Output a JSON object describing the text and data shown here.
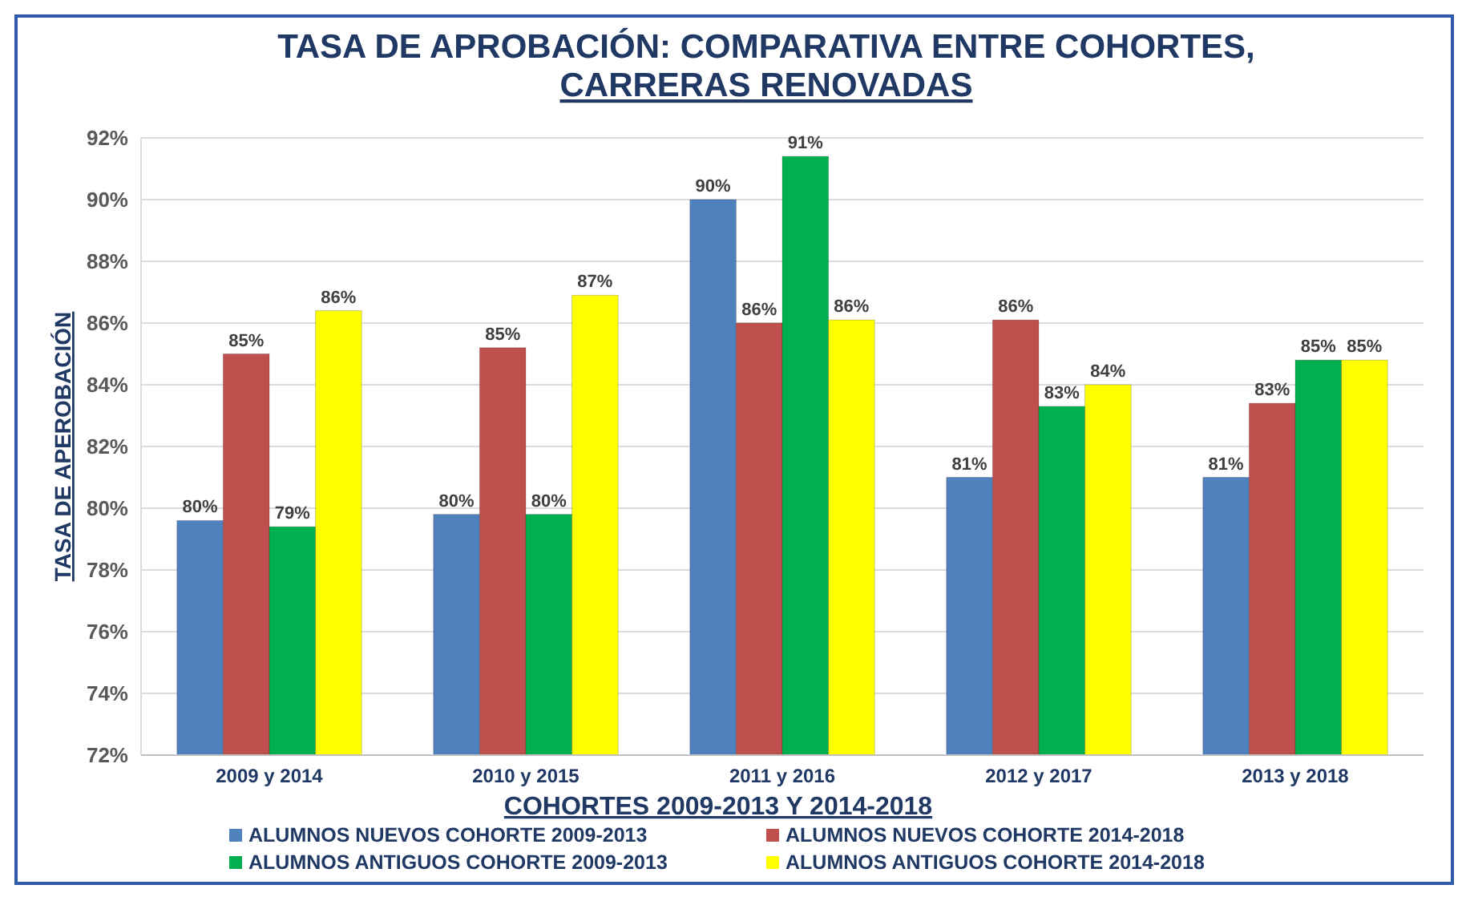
{
  "chart_data": {
    "type": "bar",
    "title": "TASA DE APROBACIÓN: COMPARATIVA ENTRE COHORTES, CARRERAS RENOVADAS",
    "xlabel": "COHORTES 2009-2013 Y 2014-2018",
    "ylabel": "TASA DE APEROBACIÓN",
    "categories": [
      "2009 y 2014",
      "2010 y 2015",
      "2011 y 2016",
      "2012  y 2017",
      "2013 y 2018"
    ],
    "series": [
      {
        "name": "ALUMNOS NUEVOS COHORTE 2009-2013",
        "color": "#4f81bd",
        "values": [
          79.6,
          79.8,
          90.0,
          81.0,
          81.0
        ],
        "value_labels": [
          "80%",
          "80%",
          "90%",
          "81%",
          "81%"
        ]
      },
      {
        "name": "ALUMNOS NUEVOS COHORTE 2014-2018",
        "color": "#c0504d",
        "values": [
          85.0,
          85.2,
          86.0,
          86.1,
          83.4
        ],
        "value_labels": [
          "85%",
          "85%",
          "86%",
          "86%",
          "83%"
        ]
      },
      {
        "name": "ALUMNOS ANTIGUOS COHORTE 2009-2013",
        "color": "#00b050",
        "values": [
          79.4,
          79.8,
          91.4,
          83.3,
          84.8
        ],
        "value_labels": [
          "79%",
          "80%",
          "91%",
          "83%",
          "85%"
        ]
      },
      {
        "name": "ALUMNOS ANTIGUOS COHORTE 2014-2018",
        "color": "#ffff00",
        "values": [
          86.4,
          86.9,
          86.1,
          84.0,
          84.8
        ],
        "value_labels": [
          "86%",
          "87%",
          "86%",
          "84%",
          "85%"
        ]
      }
    ],
    "ylim": [
      72,
      92
    ],
    "yticks": [
      {
        "value": 72,
        "label": "72%"
      },
      {
        "value": 74,
        "label": "74%"
      },
      {
        "value": 76,
        "label": "76%"
      },
      {
        "value": 78,
        "label": "78%"
      },
      {
        "value": 80,
        "label": "80%"
      },
      {
        "value": 82,
        "label": "82%"
      },
      {
        "value": 84,
        "label": "84%"
      },
      {
        "value": 86,
        "label": "86%"
      },
      {
        "value": 88,
        "label": "88%"
      },
      {
        "value": 90,
        "label": "90%"
      },
      {
        "value": 92,
        "label": "92%"
      }
    ],
    "grid": "y",
    "legend": "bottom"
  }
}
